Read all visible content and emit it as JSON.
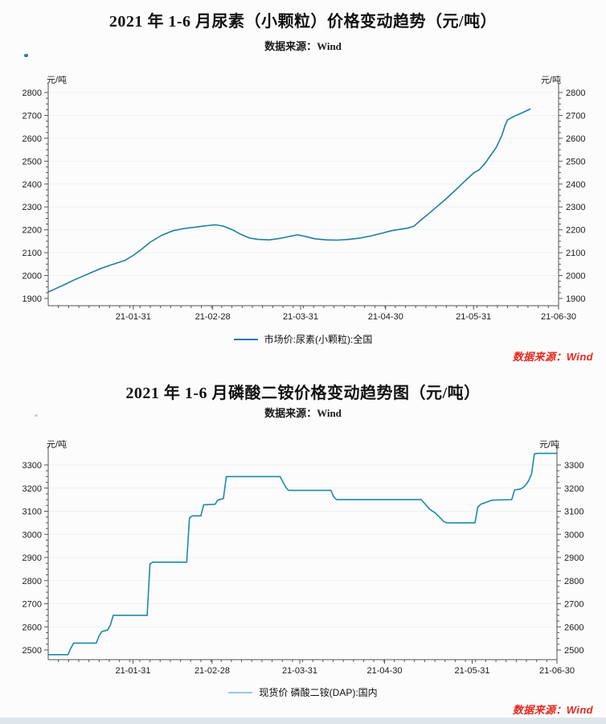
{
  "page": {
    "background": "#fcfcfc",
    "footer_strip_color": "#dee5eb",
    "artifact_dots": [
      {
        "color": "#3b6fc4"
      },
      {
        "color": "#c7d0d6"
      }
    ]
  },
  "chart_data": [
    {
      "type": "line",
      "title": "2021 年 1-6 月尿素（小颗粒）价格变动趋势（元/吨）",
      "subtitle": "数据来源：Wind",
      "ylabel": "元/吨",
      "ylim": [
        1900,
        2800
      ],
      "y_step": 100,
      "y_minor_step": 25,
      "x_range_days": [
        0,
        180
      ],
      "x_minor_step_days": 3.6,
      "x_tick_days": [
        30,
        58,
        89,
        119,
        150,
        180
      ],
      "x_tick_labels": [
        "21-01-31",
        "21-02-28",
        "21-03-31",
        "21-04-30",
        "21-05-31",
        "21-06-30"
      ],
      "grid": "faint-horizontal",
      "legend_label": "市场价:尿素(小颗粒):全国",
      "legend_marker_color": "#2e74b5",
      "legend_position": "bottom-center",
      "source_note": "数据来源：Wind",
      "source_note_color": "#e8271d",
      "series": [
        {
          "name": "市场价:尿素(小颗粒):全国",
          "color": "#1f7f9f",
          "points": [
            [
              0,
              1928
            ],
            [
              3,
              1945
            ],
            [
              6,
              1962
            ],
            [
              9,
              1980
            ],
            [
              12,
              1996
            ],
            [
              15,
              2012
            ],
            [
              18,
              2028
            ],
            [
              21,
              2042
            ],
            [
              24,
              2054
            ],
            [
              27,
              2066
            ],
            [
              30,
              2088
            ],
            [
              33,
              2116
            ],
            [
              36,
              2146
            ],
            [
              40,
              2176
            ],
            [
              44,
              2196
            ],
            [
              48,
              2206
            ],
            [
              52,
              2212
            ],
            [
              56,
              2218
            ],
            [
              59,
              2222
            ],
            [
              62,
              2215
            ],
            [
              65,
              2200
            ],
            [
              68,
              2180
            ],
            [
              71,
              2164
            ],
            [
              74,
              2158
            ],
            [
              78,
              2156
            ],
            [
              82,
              2163
            ],
            [
              85,
              2171
            ],
            [
              88,
              2178
            ],
            [
              91,
              2170
            ],
            [
              94,
              2161
            ],
            [
              98,
              2156
            ],
            [
              102,
              2155
            ],
            [
              106,
              2158
            ],
            [
              110,
              2164
            ],
            [
              114,
              2174
            ],
            [
              118,
              2186
            ],
            [
              121,
              2196
            ],
            [
              124,
              2202
            ],
            [
              127,
              2208
            ],
            [
              129,
              2216
            ],
            [
              131,
              2238
            ],
            [
              134,
              2268
            ],
            [
              137,
              2300
            ],
            [
              140,
              2332
            ],
            [
              143,
              2366
            ],
            [
              146,
              2402
            ],
            [
              149,
              2436
            ],
            [
              150,
              2448
            ],
            [
              152,
              2462
            ],
            [
              154,
              2490
            ],
            [
              156,
              2524
            ],
            [
              158,
              2560
            ],
            [
              160,
              2612
            ],
            [
              161,
              2652
            ],
            [
              162,
              2680
            ],
            [
              164,
              2694
            ],
            [
              166,
              2705
            ],
            [
              168,
              2716
            ],
            [
              170,
              2728
            ]
          ]
        }
      ]
    },
    {
      "type": "line",
      "title": "2021 年 1-6 月磷酸二铵价格变动趋势图（元/吨）",
      "subtitle": "数据来源：Wind",
      "ylabel": "元/吨",
      "ylim": [
        2500,
        3300
      ],
      "y_step": 100,
      "y_minor_step": 25,
      "x_range_days": [
        0,
        180
      ],
      "x_minor_step_days": 3.6,
      "x_tick_days": [
        30,
        58,
        89,
        119,
        150,
        180
      ],
      "x_tick_labels": [
        "21-01-31",
        "21-02-28",
        "21-03-31",
        "21-04-30",
        "21-05-31",
        "21-06-30"
      ],
      "grid": "faint-horizontal",
      "legend_label": "现货价 磷酸二铵(DAP):国内",
      "legend_marker_color": "#9dc3e6",
      "legend_position": "bottom-center",
      "source_note": "数据来源：Wind",
      "source_note_color": "#e8271d",
      "series": [
        {
          "name": "现货价 磷酸二铵(DAP):国内",
          "color": "#1e8aa8",
          "points": [
            [
              0,
              2480
            ],
            [
              7,
              2480
            ],
            [
              8,
              2508
            ],
            [
              9,
              2530
            ],
            [
              17,
              2530
            ],
            [
              18,
              2562
            ],
            [
              19,
              2580
            ],
            [
              21,
              2586
            ],
            [
              22,
              2608
            ],
            [
              23,
              2650
            ],
            [
              35,
              2650
            ],
            [
              36,
              2872
            ],
            [
              37,
              2880
            ],
            [
              49,
              2880
            ],
            [
              50,
              3072
            ],
            [
              51,
              3080
            ],
            [
              54,
              3080
            ],
            [
              55,
              3128
            ],
            [
              59,
              3130
            ],
            [
              60,
              3148
            ],
            [
              62,
              3155
            ],
            [
              63,
              3250
            ],
            [
              82,
              3250
            ],
            [
              84,
              3205
            ],
            [
              85,
              3190
            ],
            [
              100,
              3190
            ],
            [
              101,
              3162
            ],
            [
              102,
              3150
            ],
            [
              132,
              3150
            ],
            [
              135,
              3108
            ],
            [
              137,
              3092
            ],
            [
              140,
              3055
            ],
            [
              141,
              3050
            ],
            [
              151,
              3050
            ],
            [
              152,
              3118
            ],
            [
              153,
              3130
            ],
            [
              157,
              3148
            ],
            [
              164,
              3150
            ],
            [
              165,
              3192
            ],
            [
              167,
              3196
            ],
            [
              168,
              3202
            ],
            [
              169,
              3214
            ],
            [
              170,
              3232
            ],
            [
              171,
              3262
            ],
            [
              172,
              3348
            ],
            [
              173,
              3350
            ],
            [
              180,
              3350
            ]
          ]
        }
      ]
    }
  ]
}
